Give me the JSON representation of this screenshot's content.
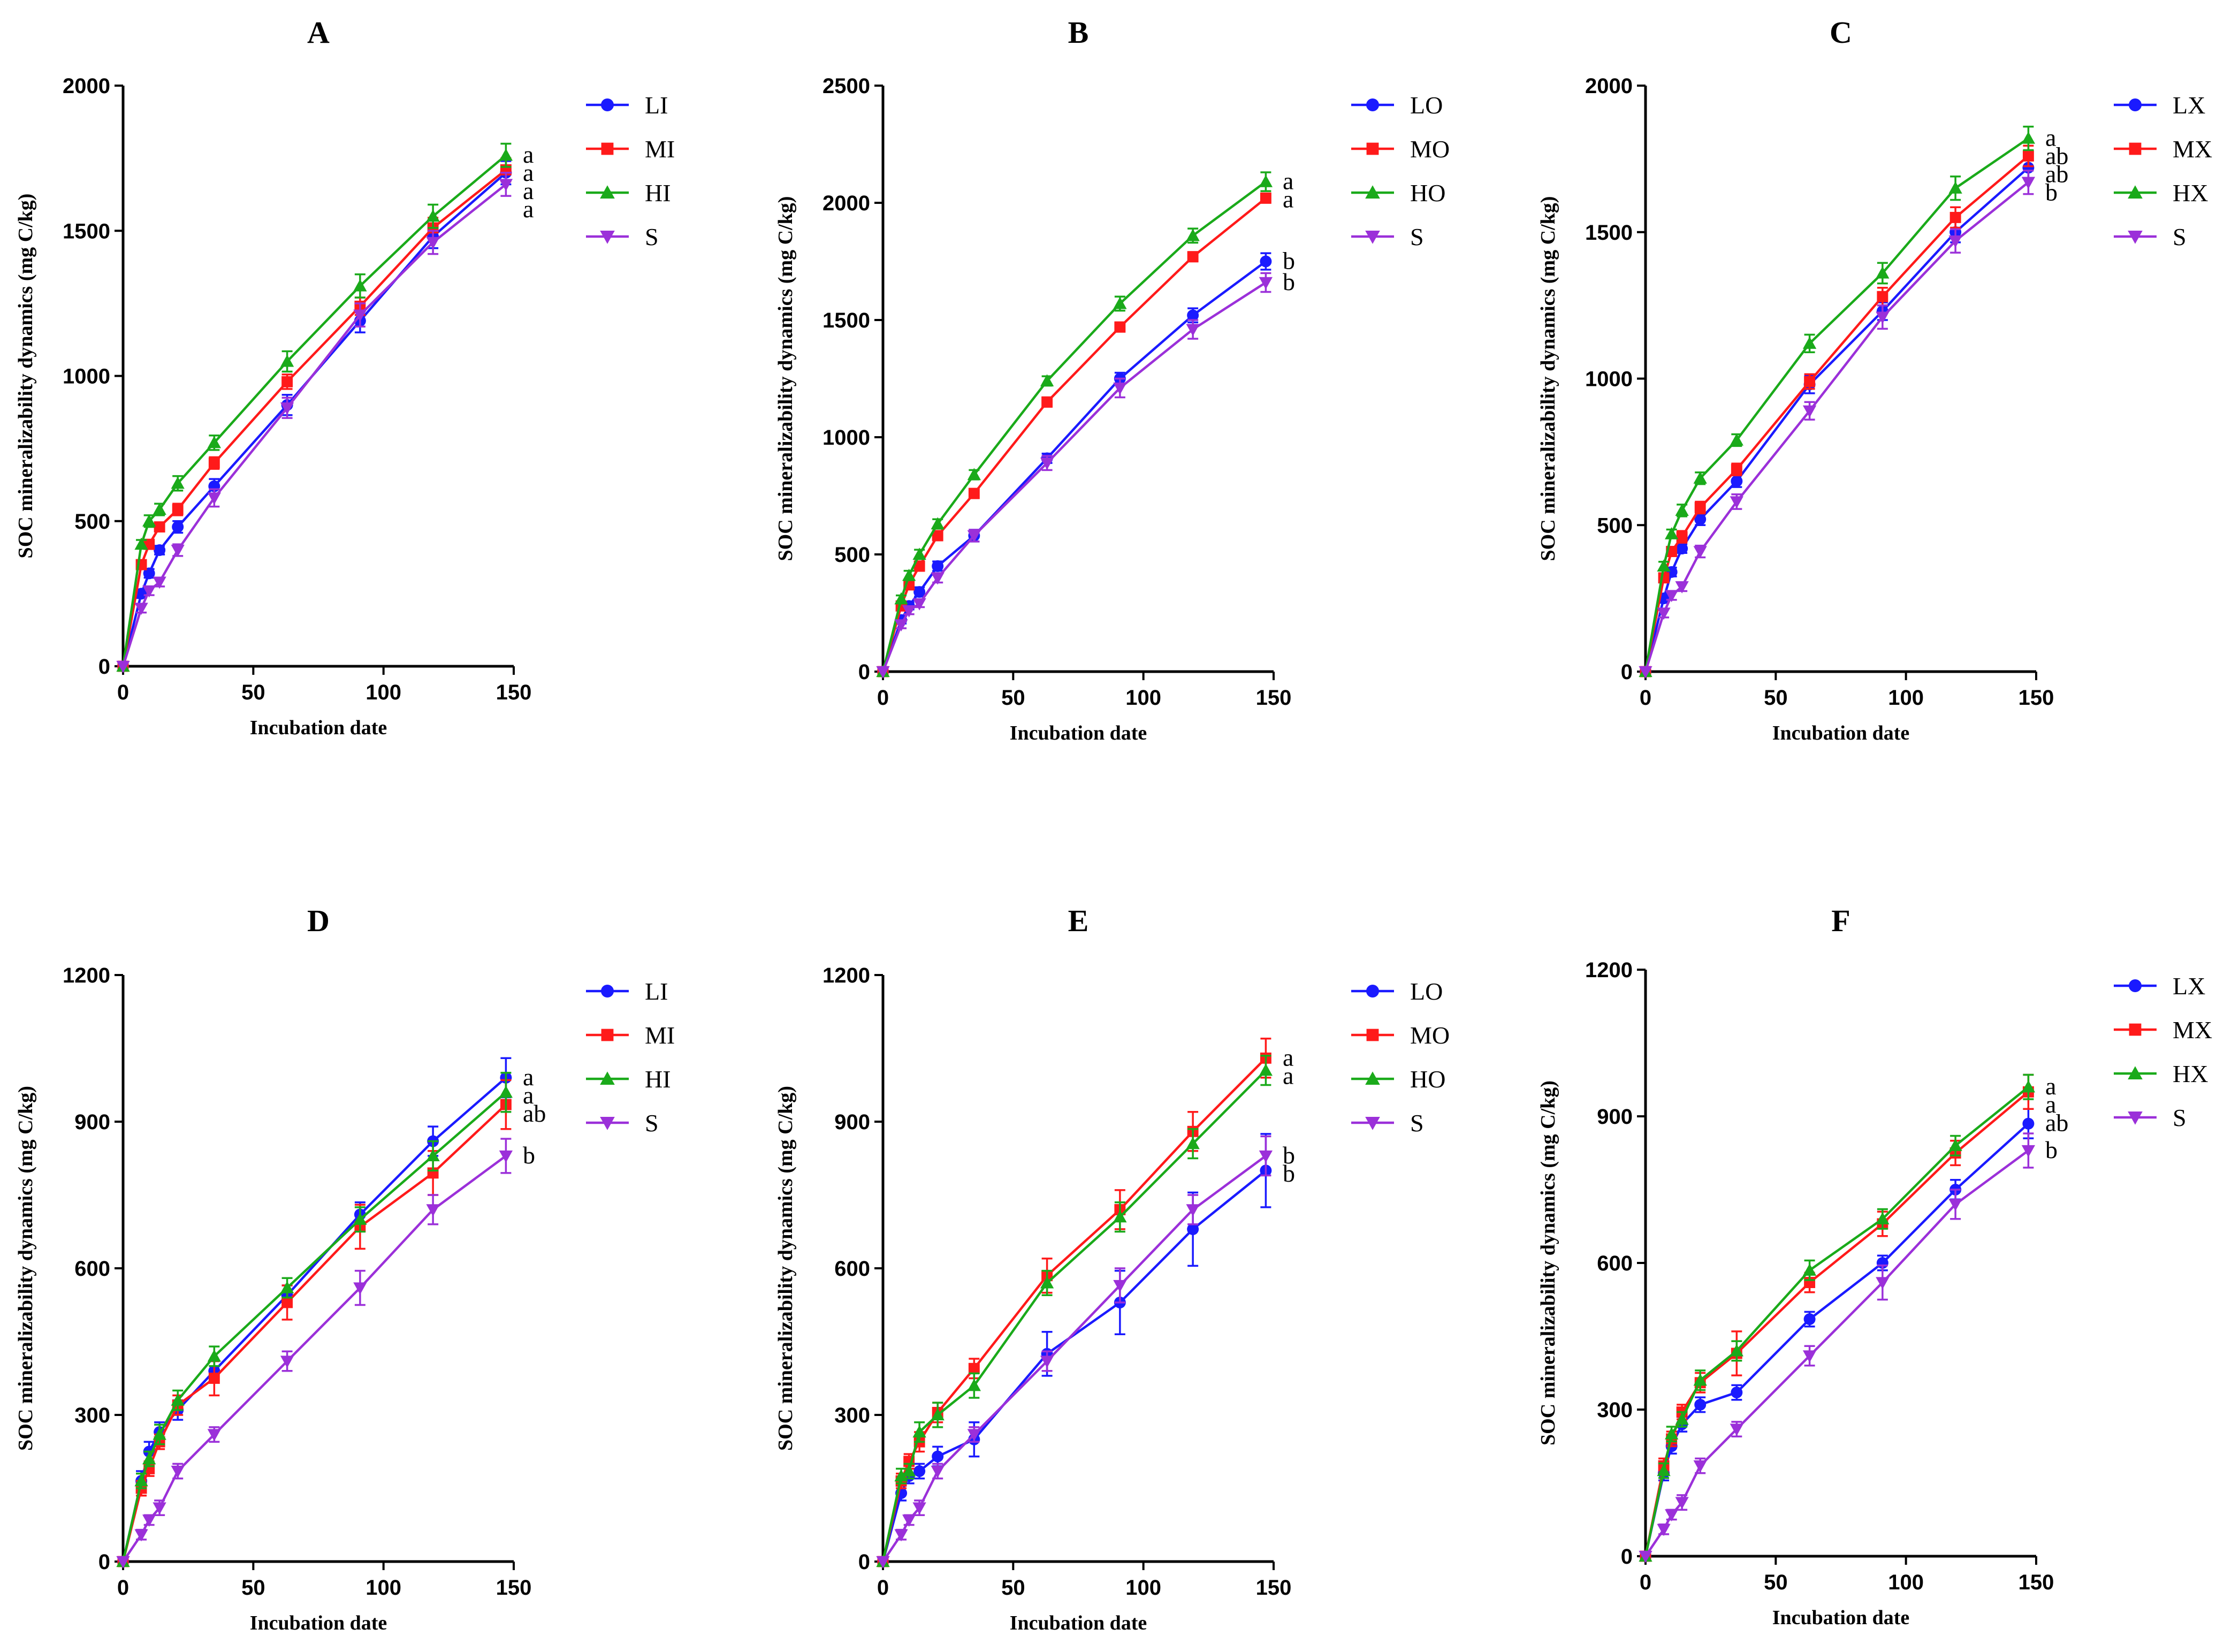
{
  "colors": {
    "L": "#1a1aff",
    "M": "#ff1a1a",
    "H": "#1aaa1a",
    "S": "#9b30d9"
  },
  "chart_data": [
    {
      "type": "line",
      "title": "A",
      "xlabel": "Incubation date",
      "ylabel": "SOC mineralizability dynamics (mg C/kg)",
      "xlim": [
        0,
        150
      ],
      "ylim": [
        0,
        2000
      ],
      "xticks": [
        0,
        50,
        100,
        150
      ],
      "yticks": [
        0,
        500,
        1000,
        1500,
        2000
      ],
      "x": [
        0,
        7,
        10,
        14,
        21,
        35,
        63,
        91,
        119,
        147
      ],
      "series": [
        {
          "name": "LI",
          "marker": "circle",
          "color": "#1a1aff",
          "values": [
            0,
            250,
            320,
            400,
            480,
            620,
            900,
            1190,
            1480,
            1700
          ],
          "errors": [
            0,
            15,
            15,
            15,
            20,
            25,
            35,
            40,
            40,
            40
          ],
          "sig": "a"
        },
        {
          "name": "MI",
          "marker": "square",
          "color": "#ff1a1a",
          "values": [
            0,
            350,
            420,
            480,
            540,
            700,
            980,
            1240,
            1510,
            1710
          ],
          "errors": [
            0,
            15,
            15,
            15,
            20,
            20,
            25,
            30,
            35,
            40
          ],
          "sig": "a"
        },
        {
          "name": "HI",
          "marker": "triangle-up",
          "color": "#1aaa1a",
          "values": [
            0,
            420,
            500,
            540,
            630,
            770,
            1050,
            1310,
            1550,
            1760
          ],
          "errors": [
            0,
            15,
            20,
            20,
            25,
            25,
            35,
            40,
            40,
            40
          ],
          "sig": "a"
        },
        {
          "name": "S",
          "marker": "triangle-down",
          "color": "#9b30d9",
          "values": [
            0,
            200,
            260,
            290,
            400,
            580,
            890,
            1210,
            1460,
            1660
          ],
          "errors": [
            0,
            15,
            15,
            15,
            20,
            30,
            35,
            40,
            40,
            40
          ],
          "sig": "a"
        }
      ]
    },
    {
      "type": "line",
      "title": "B",
      "xlabel": "Incubation date",
      "ylabel": "SOC mineralizability dynamics (mg C/kg)",
      "xlim": [
        0,
        150
      ],
      "ylim": [
        0,
        2500
      ],
      "xticks": [
        0,
        50,
        100,
        150
      ],
      "yticks": [
        0,
        500,
        1000,
        1500,
        2000,
        2500
      ],
      "x": [
        0,
        7,
        10,
        14,
        21,
        35,
        63,
        91,
        119,
        147
      ],
      "series": [
        {
          "name": "LO",
          "marker": "circle",
          "color": "#1a1aff",
          "values": [
            0,
            220,
            280,
            340,
            450,
            580,
            910,
            1250,
            1520,
            1750
          ],
          "errors": [
            0,
            15,
            15,
            20,
            20,
            25,
            20,
            25,
            30,
            35
          ],
          "sig": "b"
        },
        {
          "name": "MO",
          "marker": "square",
          "color": "#ff1a1a",
          "values": [
            0,
            280,
            370,
            450,
            580,
            760,
            1150,
            1470,
            1770,
            2020
          ],
          "errors": [
            0,
            15,
            15,
            20,
            20,
            20,
            20,
            20,
            20,
            20
          ],
          "sig": "a"
        },
        {
          "name": "HO",
          "marker": "triangle-up",
          "color": "#1aaa1a",
          "values": [
            0,
            310,
            410,
            500,
            630,
            840,
            1240,
            1570,
            1860,
            2090
          ],
          "errors": [
            0,
            15,
            20,
            20,
            20,
            20,
            20,
            30,
            30,
            40
          ],
          "sig": "a"
        },
        {
          "name": "S",
          "marker": "triangle-down",
          "color": "#9b30d9",
          "values": [
            0,
            200,
            260,
            290,
            400,
            580,
            890,
            1210,
            1460,
            1660
          ],
          "errors": [
            0,
            15,
            15,
            15,
            20,
            25,
            30,
            40,
            40,
            40
          ],
          "sig": "b"
        }
      ]
    },
    {
      "type": "line",
      "title": "C",
      "xlabel": "Incubation date",
      "ylabel": "SOC mineralizability dynamics (mg C/kg)",
      "xlim": [
        0,
        150
      ],
      "ylim": [
        0,
        2000
      ],
      "xticks": [
        0,
        50,
        100,
        150
      ],
      "yticks": [
        0,
        500,
        1000,
        1500,
        2000
      ],
      "x": [
        0,
        7,
        10,
        14,
        21,
        35,
        63,
        91,
        119,
        147
      ],
      "series": [
        {
          "name": "LX",
          "marker": "circle",
          "color": "#1a1aff",
          "values": [
            0,
            250,
            340,
            420,
            520,
            650,
            980,
            1230,
            1500,
            1720
          ],
          "errors": [
            0,
            15,
            15,
            15,
            20,
            20,
            30,
            30,
            35,
            35
          ],
          "sig": "ab"
        },
        {
          "name": "MX",
          "marker": "square",
          "color": "#ff1a1a",
          "values": [
            0,
            320,
            410,
            460,
            560,
            690,
            990,
            1280,
            1550,
            1760
          ],
          "errors": [
            0,
            15,
            15,
            20,
            20,
            20,
            25,
            30,
            35,
            35
          ],
          "sig": "ab"
        },
        {
          "name": "HX",
          "marker": "triangle-up",
          "color": "#1aaa1a",
          "values": [
            0,
            360,
            470,
            550,
            660,
            790,
            1120,
            1360,
            1650,
            1820
          ],
          "errors": [
            0,
            15,
            15,
            20,
            20,
            20,
            30,
            35,
            40,
            40
          ],
          "sig": "a"
        },
        {
          "name": "S",
          "marker": "triangle-down",
          "color": "#9b30d9",
          "values": [
            0,
            200,
            260,
            290,
            410,
            580,
            890,
            1210,
            1470,
            1670
          ],
          "errors": [
            0,
            15,
            15,
            15,
            20,
            25,
            30,
            40,
            40,
            40
          ],
          "sig": "b"
        }
      ]
    },
    {
      "type": "line",
      "title": "D",
      "xlabel": "Incubation date",
      "ylabel": "SOC mineralizability dynamics (mg C/kg)",
      "xlim": [
        0,
        150
      ],
      "ylim": [
        0,
        1200
      ],
      "xticks": [
        0,
        50,
        100,
        150
      ],
      "yticks": [
        0,
        300,
        600,
        900,
        1200
      ],
      "x": [
        0,
        7,
        10,
        14,
        21,
        35,
        63,
        91,
        119,
        147
      ],
      "series": [
        {
          "name": "LI",
          "marker": "circle",
          "color": "#1a1aff",
          "values": [
            0,
            165,
            225,
            265,
            310,
            390,
            545,
            710,
            860,
            990
          ],
          "errors": [
            0,
            20,
            20,
            20,
            20,
            20,
            20,
            25,
            30,
            40
          ],
          "sig": "a"
        },
        {
          "name": "MI",
          "marker": "square",
          "color": "#ff1a1a",
          "values": [
            0,
            150,
            190,
            245,
            320,
            375,
            530,
            685,
            795,
            935
          ],
          "errors": [
            0,
            15,
            15,
            15,
            20,
            35,
            35,
            45,
            45,
            50
          ],
          "sig": "ab"
        },
        {
          "name": "HI",
          "marker": "triangle-up",
          "color": "#1aaa1a",
          "values": [
            0,
            165,
            210,
            260,
            330,
            420,
            560,
            700,
            830,
            960
          ],
          "errors": [
            0,
            15,
            15,
            20,
            20,
            20,
            20,
            25,
            30,
            40
          ],
          "sig": "a"
        },
        {
          "name": "S",
          "marker": "triangle-down",
          "color": "#9b30d9",
          "values": [
            0,
            55,
            85,
            110,
            185,
            260,
            410,
            560,
            720,
            830
          ],
          "errors": [
            0,
            10,
            10,
            15,
            15,
            15,
            20,
            35,
            30,
            35
          ],
          "sig": "b"
        }
      ]
    },
    {
      "type": "line",
      "title": "E",
      "xlabel": "Incubation date",
      "ylabel": "SOC mineralizability dynamics (mg C/kg)",
      "xlim": [
        0,
        150
      ],
      "ylim": [
        0,
        1200
      ],
      "xticks": [
        0,
        50,
        100,
        150
      ],
      "yticks": [
        0,
        300,
        600,
        900,
        1200
      ],
      "x": [
        0,
        7,
        10,
        14,
        21,
        35,
        63,
        91,
        119,
        147
      ],
      "series": [
        {
          "name": "LO",
          "marker": "circle",
          "color": "#1a1aff",
          "values": [
            0,
            140,
            175,
            185,
            215,
            250,
            425,
            530,
            680,
            800
          ],
          "errors": [
            0,
            15,
            15,
            15,
            20,
            35,
            45,
            65,
            75,
            75
          ],
          "sig": "b"
        },
        {
          "name": "MO",
          "marker": "square",
          "color": "#ff1a1a",
          "values": [
            0,
            165,
            205,
            245,
            305,
            395,
            585,
            720,
            880,
            1030
          ],
          "errors": [
            0,
            15,
            15,
            20,
            20,
            20,
            35,
            40,
            40,
            40
          ],
          "sig": "a"
        },
        {
          "name": "HO",
          "marker": "triangle-up",
          "color": "#1aaa1a",
          "values": [
            0,
            175,
            185,
            265,
            300,
            360,
            570,
            705,
            855,
            1005
          ],
          "errors": [
            0,
            15,
            15,
            20,
            25,
            25,
            25,
            30,
            30,
            30
          ],
          "sig": "a"
        },
        {
          "name": "S",
          "marker": "triangle-down",
          "color": "#9b30d9",
          "values": [
            0,
            55,
            85,
            110,
            185,
            260,
            410,
            565,
            720,
            830
          ],
          "errors": [
            0,
            10,
            10,
            15,
            15,
            15,
            20,
            35,
            30,
            40
          ],
          "sig": "b"
        }
      ]
    },
    {
      "type": "line",
      "title": "F",
      "xlabel": "Incubation date",
      "ylabel": "SOC mineralizability dynamics (mg C/kg)",
      "xlim": [
        0,
        150
      ],
      "ylim": [
        0,
        1200
      ],
      "xticks": [
        0,
        50,
        100,
        150
      ],
      "yticks": [
        0,
        300,
        600,
        900,
        1200
      ],
      "x": [
        0,
        7,
        10,
        14,
        21,
        35,
        63,
        91,
        119,
        147
      ],
      "series": [
        {
          "name": "LX",
          "marker": "circle",
          "color": "#1a1aff",
          "values": [
            0,
            170,
            225,
            270,
            310,
            335,
            485,
            600,
            750,
            885
          ],
          "errors": [
            0,
            15,
            15,
            15,
            15,
            15,
            15,
            15,
            20,
            30
          ],
          "sig": "ab"
        },
        {
          "name": "MX",
          "marker": "square",
          "color": "#ff1a1a",
          "values": [
            0,
            185,
            240,
            295,
            355,
            415,
            560,
            680,
            825,
            950
          ],
          "errors": [
            0,
            15,
            15,
            15,
            20,
            45,
            20,
            25,
            25,
            35
          ],
          "sig": "a"
        },
        {
          "name": "HX",
          "marker": "triangle-up",
          "color": "#1aaa1a",
          "values": [
            0,
            175,
            250,
            280,
            360,
            420,
            585,
            690,
            840,
            960
          ],
          "errors": [
            0,
            15,
            15,
            15,
            20,
            20,
            20,
            20,
            20,
            25
          ],
          "sig": "a"
        },
        {
          "name": "S",
          "marker": "triangle-down",
          "color": "#9b30d9",
          "values": [
            0,
            55,
            85,
            110,
            185,
            260,
            410,
            560,
            720,
            830
          ],
          "errors": [
            0,
            10,
            10,
            15,
            15,
            15,
            20,
            35,
            30,
            35
          ],
          "sig": "b"
        }
      ]
    }
  ]
}
